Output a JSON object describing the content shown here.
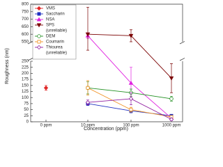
{
  "chart_data": {
    "type": "line",
    "xlabel": "Concentration (ppm)",
    "ylabel": "Roughness (nm)",
    "categories": [
      "0 ppm",
      "10 ppm",
      "100 ppm",
      "1000 ppm"
    ],
    "ylim": [
      0,
      800
    ],
    "ybreak": [
      250,
      550
    ],
    "yticks": [
      0,
      25,
      50,
      75,
      100,
      125,
      150,
      175,
      200,
      225,
      250,
      550,
      600,
      650,
      700,
      750,
      800
    ],
    "series": [
      {
        "name": "VMS",
        "color": "#e02828",
        "marker": "diamond",
        "values": [
          140,
          null,
          null,
          null
        ],
        "errors": [
          10,
          null,
          null,
          null
        ]
      },
      {
        "name": "Saccharin",
        "color": "#1f2fc0",
        "marker": "square",
        "values": [
          null,
          75,
          45,
          25
        ],
        "errors": [
          null,
          8,
          8,
          5
        ]
      },
      {
        "name": "NSA",
        "color": "#e020e0",
        "marker": "triangle",
        "values": [
          null,
          590,
          160,
          15
        ],
        "errors": [
          null,
          20,
          65,
          5
        ]
      },
      {
        "name": "SPS",
        "note": "(unreliable)",
        "color": "#7a0000",
        "marker": "triangle-down",
        "values": [
          null,
          600,
          590,
          180
        ],
        "errors": [
          null,
          180,
          40,
          60
        ]
      },
      {
        "name": "DEM",
        "color": "#229022",
        "marker": "circle-open",
        "values": [
          null,
          140,
          120,
          95
        ],
        "errors": [
          null,
          25,
          15,
          10
        ]
      },
      {
        "name": "Coumarin",
        "color": "#f09020",
        "marker": "square-open",
        "values": [
          null,
          140,
          50,
          20
        ],
        "errors": [
          null,
          30,
          10,
          5
        ]
      },
      {
        "name": "Thiourea",
        "note": "(unreliable)",
        "color": "#9020a0",
        "marker": "diamond-open",
        "values": [
          null,
          80,
          95,
          10
        ],
        "errors": [
          null,
          10,
          25,
          5
        ]
      }
    ]
  }
}
